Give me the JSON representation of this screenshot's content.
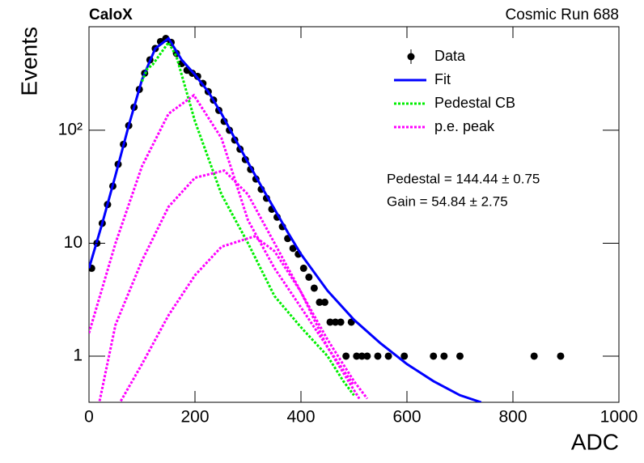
{
  "chart_data": {
    "type": "scatter",
    "corner_label": "CaloX",
    "title": "Cosmic Run 688",
    "x_label": "ADC",
    "y_label": "Events",
    "log_y": true,
    "xlim": [
      0,
      1000
    ],
    "ylim": [
      0.39,
      826
    ],
    "xticks": [
      0,
      200,
      400,
      600,
      800,
      1000
    ],
    "yticks": [
      1,
      10,
      {
        "value": 100,
        "label": "10²"
      }
    ],
    "legend": "top-right",
    "annotations": [
      "Pedestal = 144.44 ± 0.75",
      "Gain = 54.84 ± 2.75"
    ],
    "series": [
      {
        "name": "Data",
        "kind": "points",
        "color": "#000000",
        "x": [
          5,
          15,
          25,
          35,
          45,
          55,
          65,
          75,
          85,
          95,
          105,
          115,
          125,
          135,
          145,
          155,
          165,
          175,
          185,
          195,
          205,
          215,
          225,
          235,
          245,
          255,
          265,
          275,
          285,
          295,
          305,
          315,
          325,
          335,
          345,
          355,
          365,
          375,
          385,
          395,
          405,
          415,
          425,
          435,
          445,
          455,
          465,
          475,
          485,
          495,
          505,
          515,
          525,
          545,
          565,
          595,
          650,
          670,
          700,
          840,
          890
        ],
        "values": [
          6,
          10,
          15,
          22,
          32,
          50,
          75,
          110,
          160,
          230,
          320,
          420,
          530,
          610,
          650,
          600,
          480,
          390,
          340,
          320,
          300,
          260,
          220,
          185,
          150,
          120,
          100,
          82,
          68,
          55,
          45,
          37,
          30,
          25,
          20,
          17,
          14,
          11,
          9,
          8,
          6,
          5,
          4,
          3,
          3,
          2,
          2,
          2,
          1,
          2,
          1,
          1,
          1,
          1,
          1,
          1,
          1,
          1,
          1,
          1,
          1
        ]
      },
      {
        "name": "Fit",
        "kind": "line",
        "color": "#0000ff",
        "x": [
          0,
          25,
          50,
          75,
          100,
          125,
          150,
          175,
          200,
          225,
          250,
          275,
          300,
          325,
          350,
          375,
          400,
          450,
          500,
          550,
          600,
          650,
          700,
          740
        ],
        "values": [
          6,
          15,
          40,
          110,
          280,
          530,
          650,
          420,
          310,
          220,
          140,
          85,
          52,
          32,
          20,
          12.5,
          8,
          3.8,
          2.1,
          1.3,
          0.85,
          0.6,
          0.45,
          0.39
        ]
      },
      {
        "name": "Pedestal CB",
        "kind": "dotted",
        "color": "#00ee00",
        "x": [
          100,
          110,
          120,
          150,
          165,
          200,
          250,
          300,
          350,
          400,
          450,
          480,
          500
        ],
        "values": [
          270,
          350,
          380,
          600,
          450,
          120,
          27,
          10,
          3.4,
          1.8,
          1,
          0.6,
          0.45
        ]
      },
      {
        "name": "p.e. peak",
        "kind": "dotted",
        "color": "#ff00ff",
        "x": [
          0,
          50,
          100,
          150,
          198,
          250,
          300,
          350,
          400,
          450,
          500,
          null,
          20,
          50,
          100,
          150,
          200,
          255,
          300,
          350,
          400,
          450,
          500,
          525,
          null,
          60,
          100,
          150,
          200,
          250,
          312,
          350,
          400,
          450,
          500,
          510
        ],
        "values": [
          1.6,
          10,
          48,
          140,
          204,
          85,
          16,
          6,
          2.7,
          1.2,
          0.55,
          null,
          0.4,
          1.9,
          7,
          21,
          38,
          44,
          27,
          10,
          3.7,
          1.4,
          0.6,
          0.42,
          null,
          0.4,
          0.85,
          2.3,
          5.2,
          9.3,
          11.5,
          8.5,
          3.7,
          1.2,
          0.5,
          0.42
        ]
      }
    ]
  }
}
